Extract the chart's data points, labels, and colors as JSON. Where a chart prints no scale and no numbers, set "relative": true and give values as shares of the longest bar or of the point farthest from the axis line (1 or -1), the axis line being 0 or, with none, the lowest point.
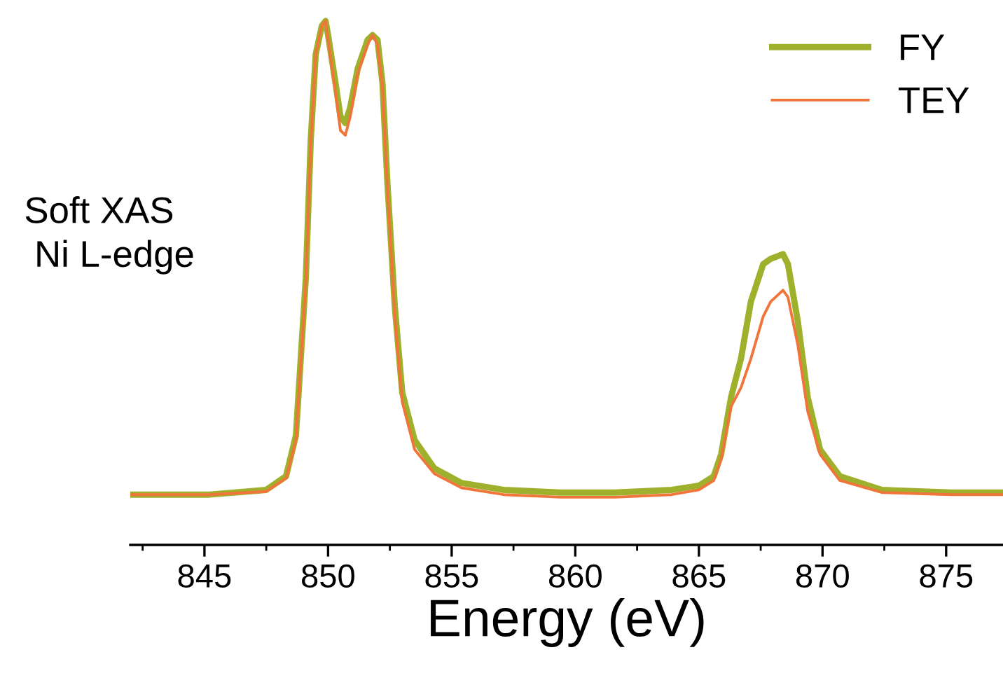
{
  "chart_data": {
    "type": "line",
    "relative": true,
    "xlabel": "Energy (eV)",
    "annotations": [
      "Soft XAS\n Ni L-edge"
    ],
    "x": [
      842.0,
      845.2,
      847.5,
      848.3,
      848.7,
      849.1,
      849.3,
      849.5,
      849.75,
      849.9,
      850.0,
      850.3,
      850.5,
      850.7,
      850.9,
      851.2,
      851.6,
      851.8,
      852.0,
      852.2,
      852.4,
      852.7,
      853.0,
      853.5,
      854.3,
      855.4,
      857.1,
      859.4,
      861.6,
      863.9,
      865.0,
      865.6,
      865.9,
      866.3,
      866.7,
      867.1,
      867.6,
      867.9,
      868.4,
      868.6,
      869.0,
      869.4,
      869.9,
      870.7,
      872.4,
      875.2,
      877.3
    ],
    "series": [
      {
        "name": "FY",
        "color": "#9fb02c",
        "values": [
          0.096,
          0.096,
          0.105,
          0.131,
          0.209,
          0.509,
          0.773,
          0.936,
          0.991,
          1.0,
          0.973,
          0.882,
          0.818,
          0.805,
          0.836,
          0.909,
          0.964,
          0.973,
          0.964,
          0.882,
          0.691,
          0.455,
          0.291,
          0.2,
          0.146,
          0.118,
          0.105,
          0.1,
          0.1,
          0.105,
          0.113,
          0.131,
          0.173,
          0.282,
          0.355,
          0.464,
          0.536,
          0.546,
          0.555,
          0.536,
          0.427,
          0.282,
          0.182,
          0.131,
          0.105,
          0.1,
          0.1
        ]
      },
      {
        "name": "TEY",
        "color": "#f0753a",
        "values": [
          0.096,
          0.096,
          0.102,
          0.127,
          0.2,
          0.5,
          0.764,
          0.936,
          0.991,
          1.0,
          0.964,
          0.864,
          0.791,
          0.782,
          0.818,
          0.9,
          0.955,
          0.973,
          0.955,
          0.873,
          0.682,
          0.436,
          0.273,
          0.182,
          0.136,
          0.109,
          0.096,
          0.091,
          0.091,
          0.096,
          0.105,
          0.123,
          0.164,
          0.264,
          0.3,
          0.355,
          0.436,
          0.464,
          0.486,
          0.473,
          0.382,
          0.255,
          0.173,
          0.123,
          0.1,
          0.096,
          0.096
        ]
      }
    ],
    "xlim": [
      842.0,
      877.3
    ],
    "xticks": [
      845,
      850,
      855,
      860,
      865,
      870,
      875
    ],
    "tick_labels": "x",
    "legend": "top right",
    "grid": false,
    "marker": "none",
    "line_style": "solid"
  }
}
